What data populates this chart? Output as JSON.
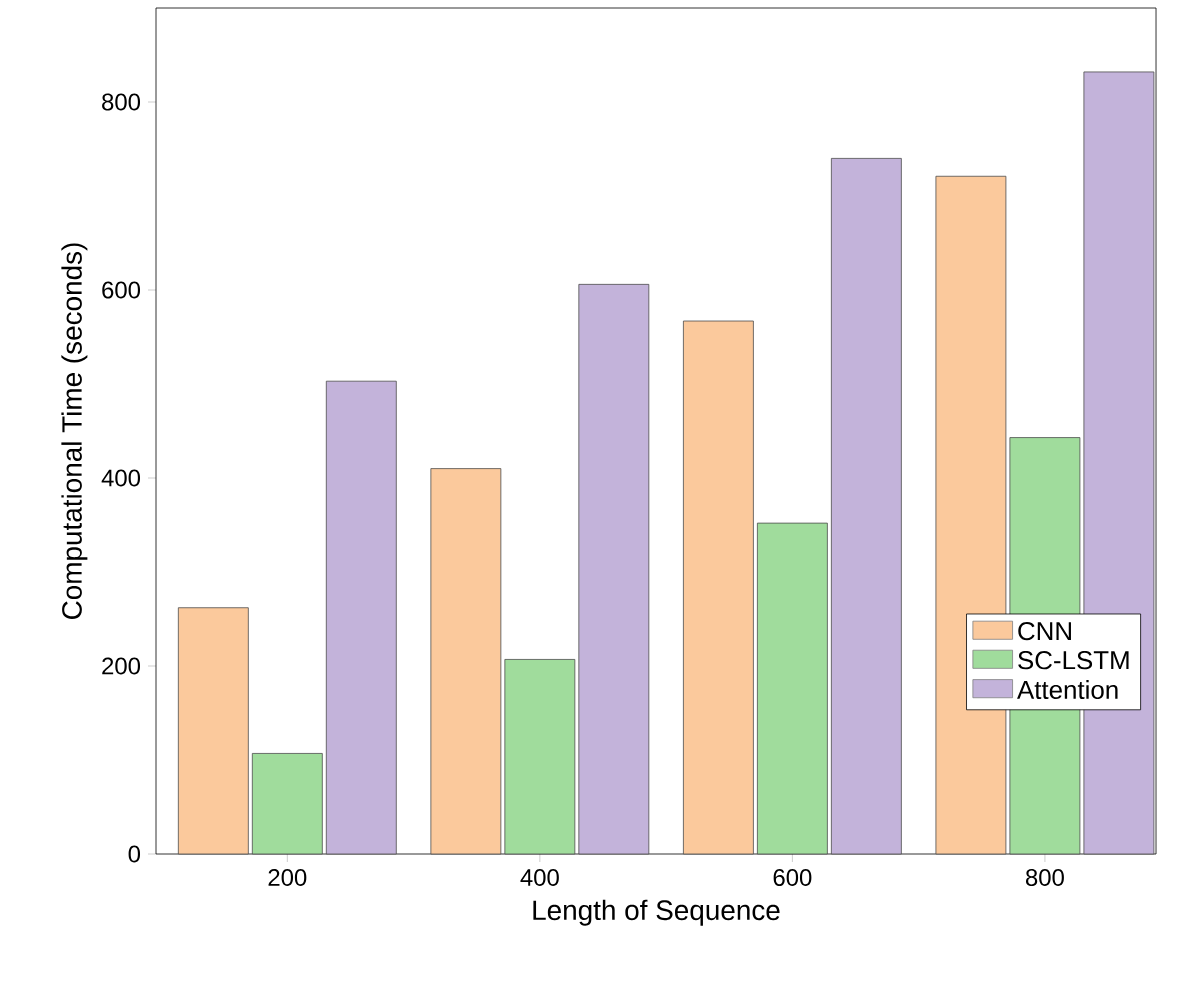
{
  "chart_data": {
    "type": "bar",
    "xlabel": "Length of Sequence",
    "ylabel": "Computational Time (seconds)",
    "categories": [
      "200",
      "400",
      "600",
      "800"
    ],
    "series": [
      {
        "name": "CNN",
        "color": "#fbc99c",
        "values": [
          262,
          410,
          567,
          721
        ]
      },
      {
        "name": "SC-LSTM",
        "color": "#a0dc9c",
        "values": [
          107,
          207,
          352,
          443
        ]
      },
      {
        "name": "Attention",
        "color": "#c3b3da",
        "values": [
          503,
          606,
          740,
          832
        ]
      }
    ],
    "ylim": [
      0,
      900
    ],
    "yticks": [
      0,
      200,
      400,
      600,
      800
    ],
    "legend": "bottom right",
    "grid": false
  }
}
